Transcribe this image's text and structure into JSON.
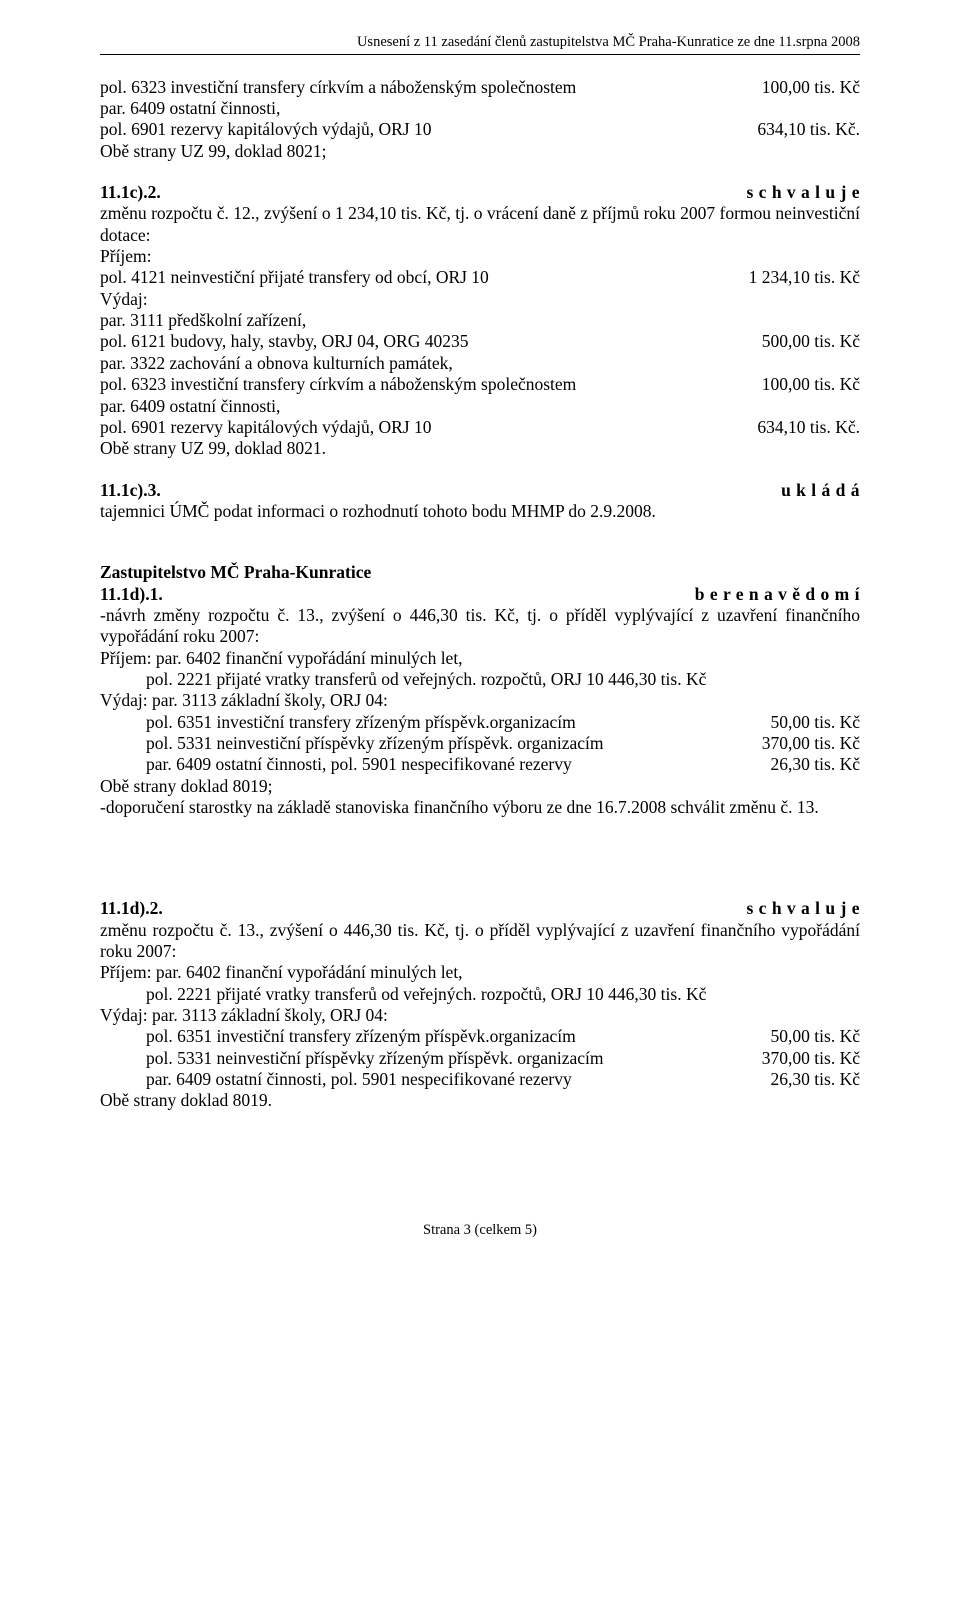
{
  "header": "Usnesení z 11 zasedání členů zastupitelstva MČ Praha-Kunratice ze dne 11.srpna 2008",
  "block1": {
    "l1_left": "pol. 6323 investiční transfery církvím a náboženským společnostem",
    "l1_right": "100,00 tis. Kč",
    "l2": "par. 6409 ostatní činnosti,",
    "l3_left": "pol. 6901 rezervy kapitálových výdajů, ORJ 10",
    "l3_right": "634,10 tis. Kč.",
    "l4": "Obě strany UZ 99, doklad 8021;"
  },
  "sec_11_1c_2": {
    "heading_left": "11.1c).2.",
    "heading_right": "s c h v a l u j e",
    "p1": "změnu rozpočtu č. 12., zvýšení o 1 234,10 tis. Kč, tj. o vrácení daně z příjmů roku 2007 formou neinvestiční dotace:",
    "prijem": "Příjem:",
    "p2_left": "pol. 4121 neinvestiční přijaté transfery od obcí, ORJ 10",
    "p2_right": "1 234,10 tis. Kč",
    "vydaj": "Výdaj:",
    "p3": "par. 3111 předškolní zařízení,",
    "p4_left": "pol. 6121 budovy, haly, stavby, ORJ 04, ORG 40235",
    "p4_right": "500,00 tis. Kč",
    "p5": "par. 3322 zachování a obnova kulturních památek,",
    "p6_left": "pol. 6323 investiční transfery církvím a náboženským společnostem",
    "p6_right": "100,00 tis. Kč",
    "p7": "par. 6409 ostatní činnosti,",
    "p8_left": "pol. 6901 rezervy kapitálových výdajů, ORJ 10",
    "p8_right": "634,10 tis. Kč.",
    "p9": "Obě strany UZ 99, doklad 8021."
  },
  "sec_11_1c_3": {
    "heading_left": "11.1c).3.",
    "heading_right": "u k l á d á",
    "body": "tajemnici ÚMČ podat informaci o rozhodnutí tohoto bodu MHMP do 2.9.2008."
  },
  "sec_11_1d_1": {
    "title": "Zastupitelstvo MČ Praha-Kunratice",
    "heading_left": "11.1d).1.",
    "heading_right": "b e r e  n a  v ě d o m í",
    "p1": "-návrh změny rozpočtu č. 13., zvýšení o 446,30 tis. Kč, tj. o příděl vyplývající z uzavření finančního vypořádání roku 2007:",
    "p2": "Příjem: par. 6402 finanční vypořádání minulých let,",
    "p3": "pol. 2221 přijaté vratky transferů od veřejných. rozpočtů, ORJ 10  446,30 tis. Kč",
    "p4": "Výdaj: par. 3113 základní školy, ORJ 04:",
    "p5_left": "pol. 6351 investiční transfery zřízeným příspěvk.organizacím",
    "p5_right": "50,00 tis. Kč",
    "p6_left": "pol. 5331 neinvestiční příspěvky zřízeným příspěvk. organizacím",
    "p6_right": "370,00 tis. Kč",
    "p7_left": "par. 6409 ostatní činnosti, pol. 5901 nespecifikované rezervy",
    "p7_right": "26,30 tis. Kč",
    "p8": "Obě strany doklad 8019;",
    "p9": "-doporučení starostky na základě stanoviska finančního výboru ze dne 16.7.2008 schválit změnu č. 13."
  },
  "sec_11_1d_2": {
    "heading_left": "11.1d).2.",
    "heading_right": "s c h v a l u j e",
    "p1": "změnu rozpočtu č. 13., zvýšení o 446,30 tis. Kč, tj. o příděl vyplývající z uzavření  finančního vypořádání roku 2007:",
    "p2": "Příjem: par. 6402 finanční vypořádání minulých let,",
    "p3": "pol. 2221 přijaté vratky transferů od veřejných. rozpočtů, ORJ 10  446,30 tis. Kč",
    "p4": "Výdaj: par. 3113 základní školy, ORJ 04:",
    "p5_left": "pol. 6351 investiční transfery zřízeným příspěvk.organizacím",
    "p5_right": "50,00 tis. Kč",
    "p6_left": "pol. 5331 neinvestiční příspěvky zřízeným příspěvk. organizacím",
    "p6_right": "370,00 tis. Kč",
    "p7_left": "par. 6409 ostatní činnosti, pol. 5901 nespecifikované rezervy",
    "p7_right": "26,30 tis. Kč",
    "p8": "Obě strany doklad 8019."
  },
  "footer": "Strana 3 (celkem 5)"
}
